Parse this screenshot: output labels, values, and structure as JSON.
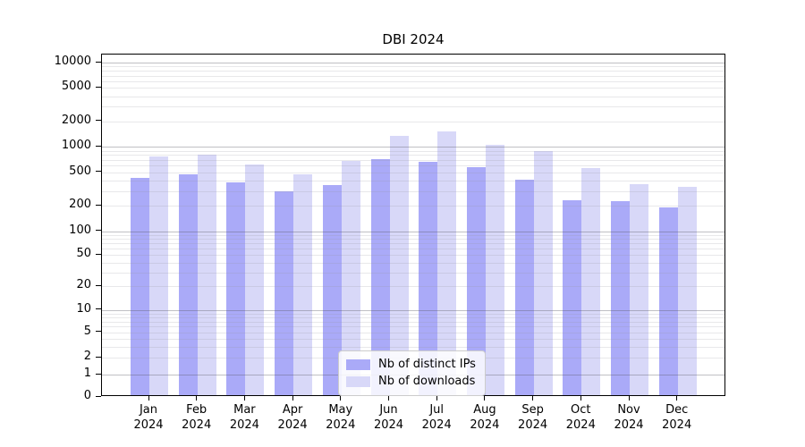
{
  "chart_data": {
    "type": "bar",
    "title": "DBI 2024",
    "xlabel": "",
    "ylabel": "",
    "yscale": "log (symlog near zero)",
    "ylim": [
      0,
      14000
    ],
    "grid": "horizontal major and minor gridlines",
    "legend_position": "lower center",
    "year": "2024",
    "months": [
      "Jan",
      "Feb",
      "Mar",
      "Apr",
      "May",
      "Jun",
      "Jul",
      "Aug",
      "Sep",
      "Oct",
      "Nov",
      "Dec"
    ],
    "categories": [
      "Jan 2024",
      "Feb 2024",
      "Mar 2024",
      "Apr 2024",
      "May 2024",
      "Jun 2024",
      "Jul 2024",
      "Aug 2024",
      "Sep 2024",
      "Oct 2024",
      "Nov 2024",
      "Dec 2024"
    ],
    "series": [
      {
        "name": "Nb of distinct IPs",
        "color": "#aaaaf8",
        "values": [
          410,
          450,
          365,
          285,
          335,
          675,
          640,
          545,
          385,
          220,
          218,
          183
        ]
      },
      {
        "name": "Nb of downloads",
        "color": "#d8d8f8",
        "values": [
          740,
          775,
          590,
          450,
          650,
          1300,
          1450,
          1020,
          840,
          530,
          345,
          320
        ]
      }
    ],
    "y_tick_labels": [
      "10000",
      "5000",
      "2000",
      "1000",
      "500",
      "200",
      "100",
      "50",
      "20",
      "10",
      "5",
      "2",
      "1",
      "0"
    ]
  }
}
